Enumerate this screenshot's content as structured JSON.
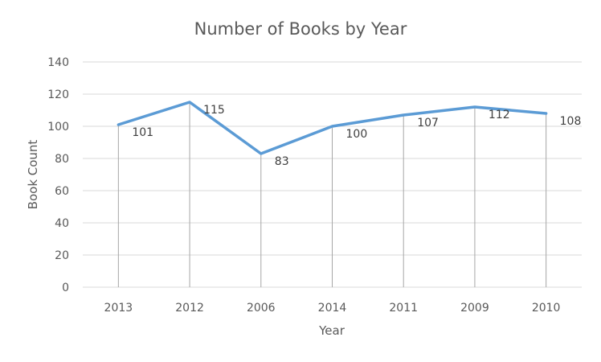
{
  "chart_data": {
    "type": "line",
    "title": "Number of Books by Year",
    "xlabel": "Year",
    "ylabel": "Book Count",
    "categories": [
      "2013",
      "2012",
      "2006",
      "2014",
      "2011",
      "2009",
      "2010"
    ],
    "series": [
      {
        "values": [
          101,
          115,
          83,
          100,
          107,
          112,
          108
        ],
        "color": "#5b9bd5"
      }
    ],
    "data_labels": [
      "101",
      "115",
      "83",
      "100",
      "107",
      "112",
      "108"
    ],
    "ylim": [
      0,
      140
    ],
    "yticks": [
      "0",
      "20",
      "40",
      "60",
      "80",
      "100",
      "120",
      "140"
    ],
    "grid": true,
    "drop_lines": true,
    "legend": "none"
  }
}
